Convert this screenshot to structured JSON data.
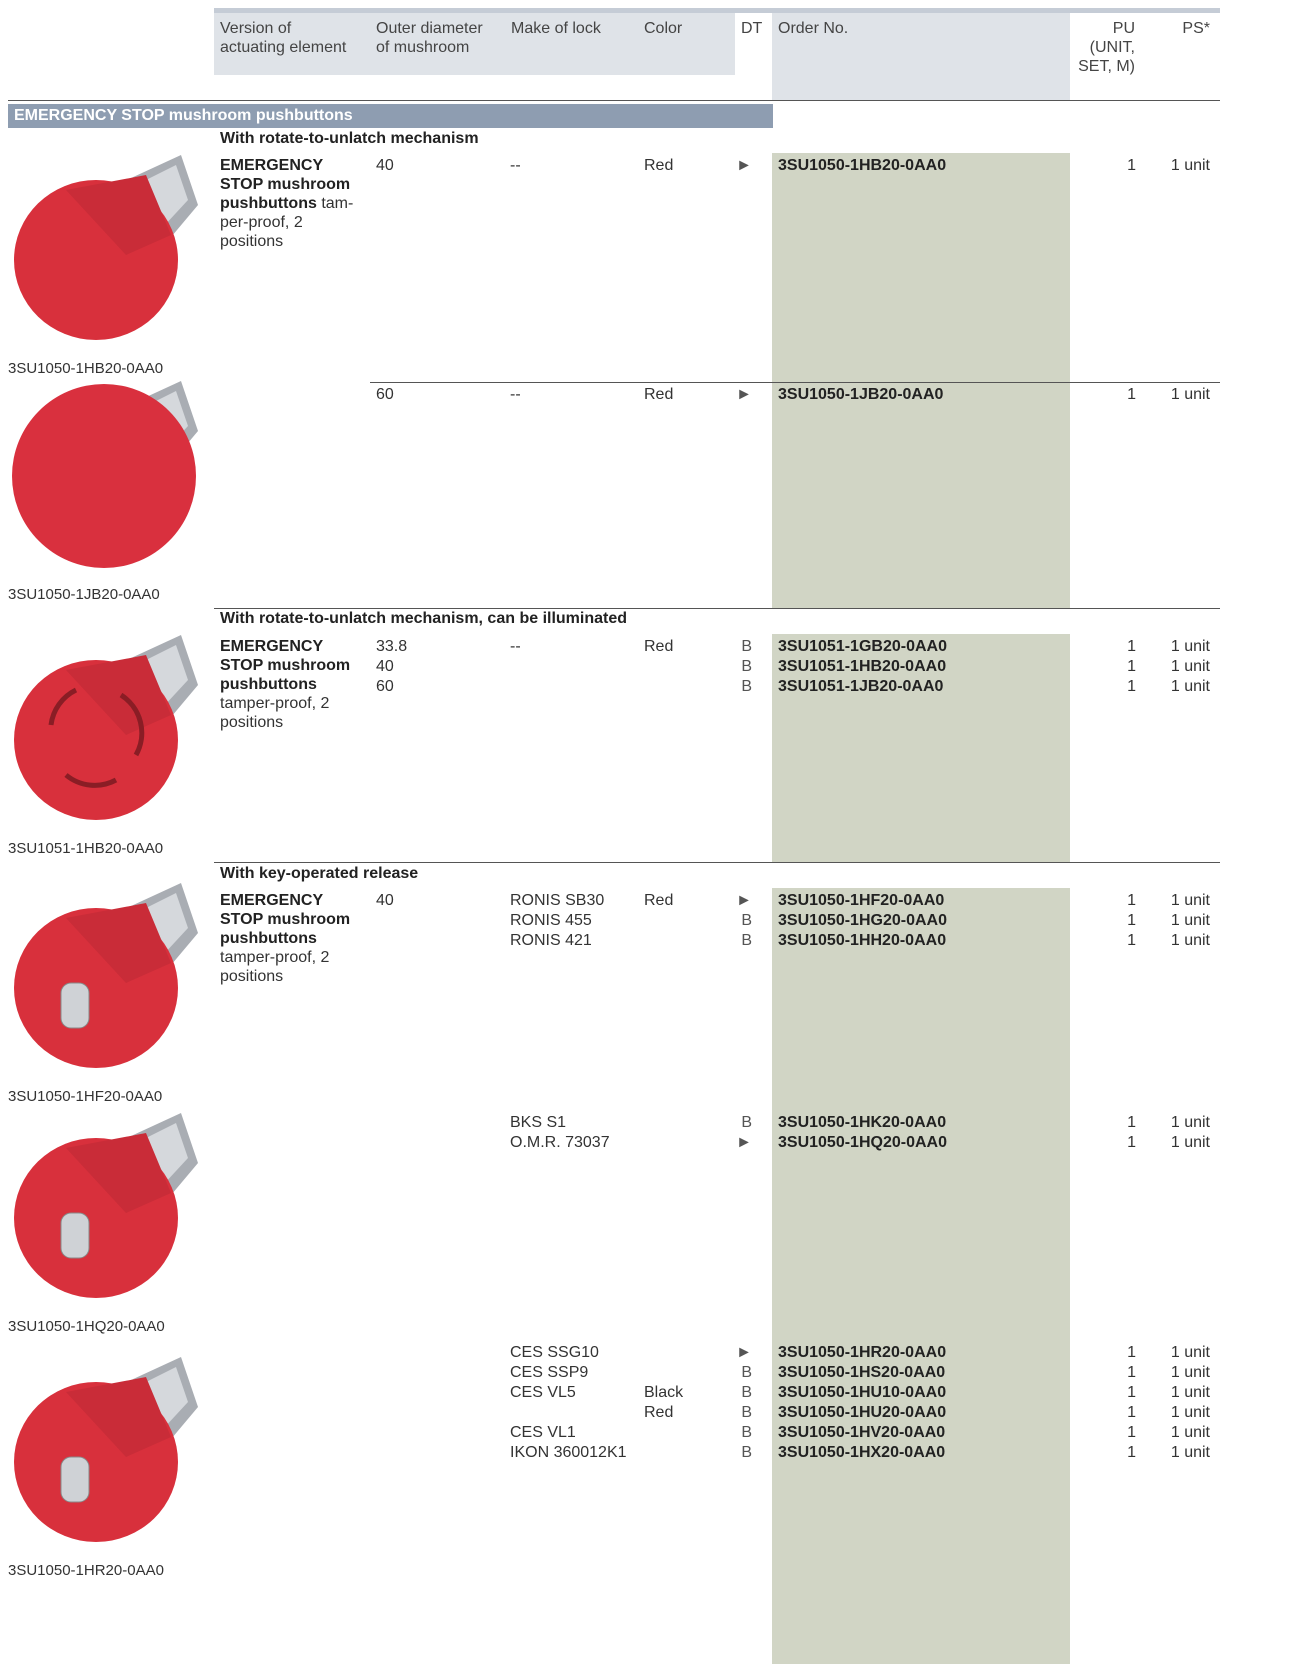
{
  "header": {
    "columns": [
      "Version of\nactuating element",
      "Outer diameter\nof mushroom",
      "Make of lock",
      "Color",
      "DT",
      "Order No.",
      "PU\n(UNIT,\nSET, M)",
      "PS*"
    ]
  },
  "section": "EMERGENCY STOP mushroom pushbuttons",
  "groups": [
    {
      "title": "With rotate-to-unlatch mechanism",
      "description": {
        "bold": "EMERGENCY STOP mushroom pushbuttons",
        "text": "tam-per-proof, 2 positions"
      },
      "blocks": [
        {
          "image_caption": "3SU1050-1HB20-0AA0",
          "lines": [
            {
              "diameter": "40",
              "lock": "--",
              "color": "Red",
              "dt": "►",
              "order": "3SU1050-1HB20-0AA0",
              "pu": 1,
              "ps": "1 unit"
            }
          ]
        },
        {
          "image_caption": "3SU1050-1JB20-0AA0",
          "lines": [
            {
              "diameter": "60",
              "lock": "--",
              "color": "Red",
              "dt": "►",
              "order": "3SU1050-1JB20-0AA0",
              "pu": 1,
              "ps": "1 unit"
            }
          ]
        }
      ]
    },
    {
      "title": "With rotate-to-unlatch mechanism, can be illuminated",
      "description": {
        "bold": "EMERGENCY STOP mushroom pushbuttons",
        "text": "tamper-proof, 2 positions"
      },
      "blocks": [
        {
          "image_caption": "3SU1051-1HB20-0AA0",
          "lines": [
            {
              "diameter": "33.8",
              "lock": "--",
              "color": "Red",
              "dt": "B",
              "order": "3SU1051-1GB20-0AA0",
              "pu": 1,
              "ps": "1 unit"
            },
            {
              "diameter": "40",
              "dt": "B",
              "order": "3SU1051-1HB20-0AA0",
              "pu": 1,
              "ps": "1 unit"
            },
            {
              "diameter": "60",
              "dt": "B",
              "order": "3SU1051-1JB20-0AA0",
              "pu": 1,
              "ps": "1 unit"
            }
          ]
        }
      ]
    },
    {
      "title": "With key-operated release",
      "description": {
        "bold": "EMERGENCY STOP mushroom pushbuttons",
        "text": "tamper-proof, 2 positions"
      },
      "blocks": [
        {
          "image_caption": "3SU1050-1HF20-0AA0",
          "lines": [
            {
              "diameter": "40",
              "lock": "RONIS SB30",
              "color": "Red",
              "dt": "►",
              "order": "3SU1050-1HF20-0AA0",
              "pu": 1,
              "ps": "1 unit"
            },
            {
              "lock": "RONIS 455",
              "dt": "B",
              "order": "3SU1050-1HG20-0AA0",
              "pu": 1,
              "ps": "1 unit"
            },
            {
              "lock": "RONIS 421",
              "dt": "B",
              "order": "3SU1050-1HH20-0AA0",
              "pu": 1,
              "ps": "1 unit"
            }
          ]
        },
        {
          "image_caption": "3SU1050-1HQ20-0AA0",
          "lines": [
            {
              "lock": "BKS S1",
              "dt": "B",
              "order": "3SU1050-1HK20-0AA0",
              "pu": 1,
              "ps": "1 unit"
            },
            {
              "lock": "O.M.R. 73037",
              "dt": "►",
              "order": "3SU1050-1HQ20-0AA0",
              "pu": 1,
              "ps": "1 unit"
            }
          ]
        },
        {
          "image_caption": "3SU1050-1HR20-0AA0",
          "lines": [
            {
              "lock": "CES SSG10",
              "dt": "►",
              "order": "3SU1050-1HR20-0AA0",
              "pu": 1,
              "ps": "1 unit"
            },
            {
              "lock": "CES SSP9",
              "dt": "B",
              "order": "3SU1050-1HS20-0AA0",
              "pu": 1,
              "ps": "1 unit"
            },
            {
              "lock": "CES VL5",
              "color": "Black",
              "dt": "B",
              "order": "3SU1050-1HU10-0AA0",
              "pu": 1,
              "ps": "1 unit"
            },
            {
              "color": "Red",
              "dt": "B",
              "order": "3SU1050-1HU20-0AA0",
              "pu": 1,
              "ps": "1 unit"
            },
            {
              "lock": "CES VL1",
              "dt": "B",
              "order": "3SU1050-1HV20-0AA0",
              "pu": 1,
              "ps": "1 unit"
            },
            {
              "lock": "IKON 360012K1",
              "dt": "B",
              "order": "3SU1050-1HX20-0AA0",
              "pu": 1,
              "ps": "1 unit"
            }
          ]
        }
      ]
    }
  ]
}
